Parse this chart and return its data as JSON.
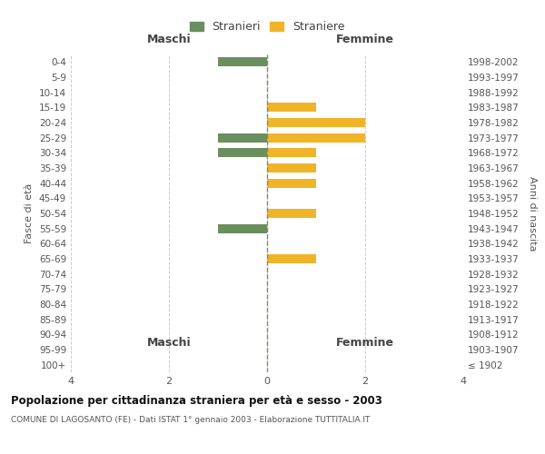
{
  "age_groups": [
    "100+",
    "95-99",
    "90-94",
    "85-89",
    "80-84",
    "75-79",
    "70-74",
    "65-69",
    "60-64",
    "55-59",
    "50-54",
    "45-49",
    "40-44",
    "35-39",
    "30-34",
    "25-29",
    "20-24",
    "15-19",
    "10-14",
    "5-9",
    "0-4"
  ],
  "birth_years": [
    "≤ 1902",
    "1903-1907",
    "1908-1912",
    "1913-1917",
    "1918-1922",
    "1923-1927",
    "1928-1932",
    "1933-1937",
    "1938-1942",
    "1943-1947",
    "1948-1952",
    "1953-1957",
    "1958-1962",
    "1963-1967",
    "1968-1972",
    "1973-1977",
    "1978-1982",
    "1983-1987",
    "1988-1992",
    "1993-1997",
    "1998-2002"
  ],
  "males": [
    0,
    0,
    0,
    0,
    0,
    0,
    0,
    0,
    0,
    1,
    0,
    0,
    0,
    0,
    1,
    1,
    0,
    0,
    0,
    0,
    1
  ],
  "females": [
    0,
    0,
    0,
    0,
    0,
    0,
    0,
    1,
    0,
    0,
    1,
    0,
    1,
    1,
    1,
    2,
    2,
    1,
    0,
    0,
    0
  ],
  "male_color": "#6b8e5e",
  "female_color": "#f0b429",
  "title": "Popolazione per cittadinanza straniera per età e sesso - 2003",
  "subtitle": "COMUNE DI LAGOSANTO (FE) - Dati ISTAT 1° gennaio 2003 - Elaborazione TUTTITALIA.IT",
  "ylabel_left": "Fasce di età",
  "ylabel_right": "Anni di nascita",
  "xlabel_left": "Maschi",
  "xlabel_right": "Femmine",
  "legend_stranieri": "Stranieri",
  "legend_straniere": "Straniere",
  "xlim": 4,
  "background_color": "#ffffff",
  "grid_color": "#cccccc"
}
